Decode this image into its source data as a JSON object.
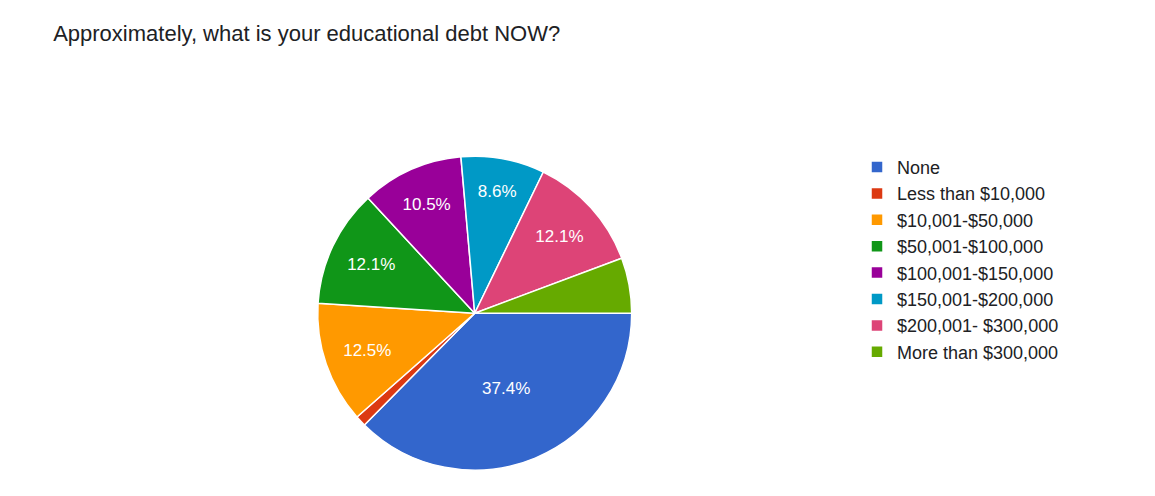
{
  "chart_data": {
    "type": "pie",
    "title": "Approximately, what is your educational debt NOW?",
    "categories": [
      "None",
      "Less than $10,000",
      "$10,001-$50,000",
      "$50,001-$100,000",
      "$100,001-$150,000",
      "$150,001-$200,000",
      "$200,001- $300,000",
      "More than $300,000"
    ],
    "values": [
      37.4,
      1.1,
      12.5,
      12.1,
      10.5,
      8.6,
      12.1,
      5.7
    ],
    "value_labels": [
      "37.4%",
      null,
      "12.5%",
      "12.1%",
      "10.5%",
      "8.6%",
      "12.1%",
      null
    ],
    "colors": [
      "#3366cc",
      "#dc3912",
      "#ff9900",
      "#109618",
      "#990099",
      "#0099c6",
      "#dd4477",
      "#66aa00"
    ],
    "data_labels": true,
    "legend": "right"
  }
}
